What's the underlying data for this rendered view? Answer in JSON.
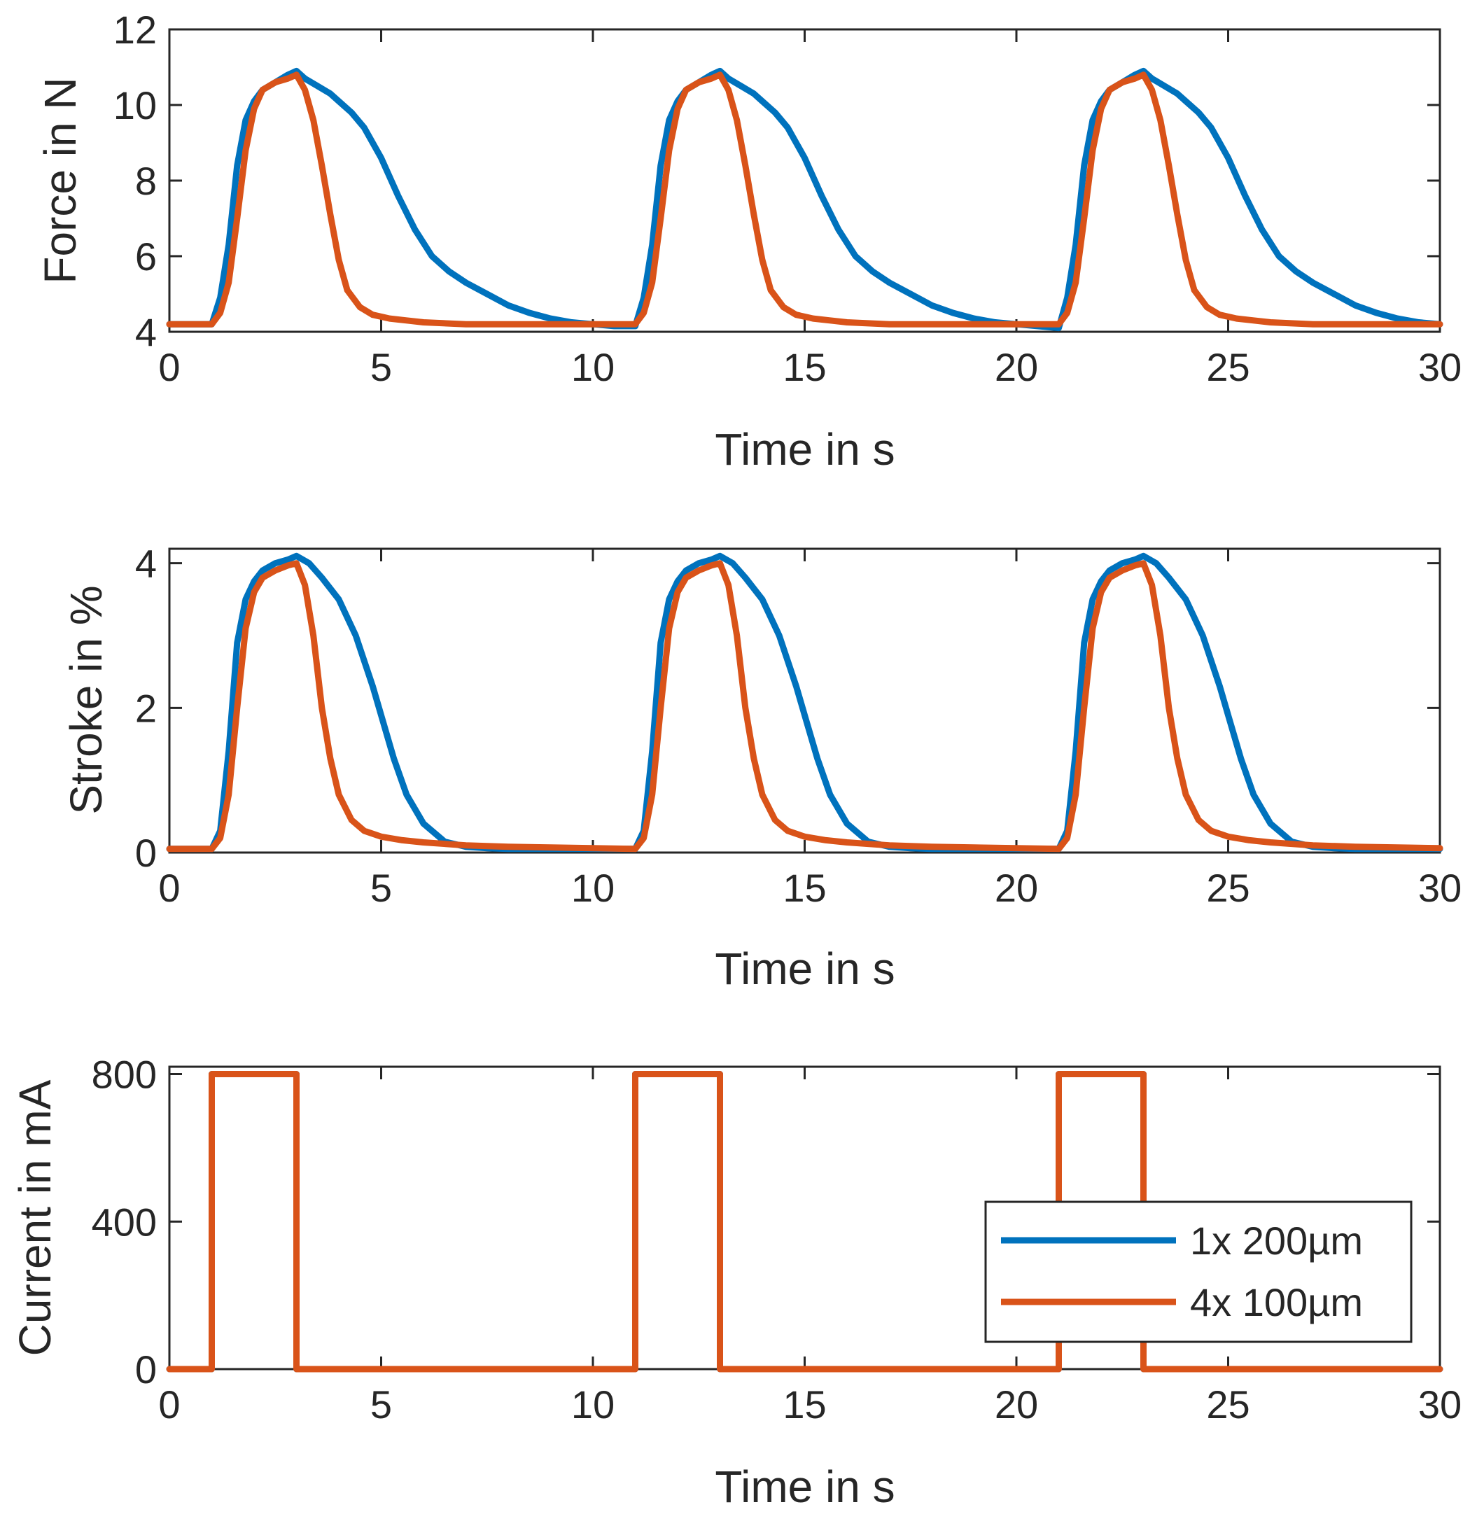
{
  "chart_data": [
    {
      "type": "line",
      "xlabel": "Time in s",
      "ylabel": "Force in N",
      "xlim": [
        0,
        30
      ],
      "ylim": [
        4,
        12
      ],
      "xticks": [
        0,
        5,
        10,
        15,
        20,
        25,
        30
      ],
      "yticks": [
        4,
        6,
        8,
        10,
        12
      ],
      "grid": false,
      "series": [
        {
          "color": "#0072BD",
          "x": [
            0,
            1,
            1.2,
            1.4,
            1.6,
            1.8,
            2.0,
            2.2,
            2.5,
            2.8,
            3.0,
            3.2,
            3.5,
            3.8,
            4.0,
            4.3,
            4.6,
            5.0,
            5.4,
            5.8,
            6.2,
            6.6,
            7.0,
            7.5,
            8.0,
            8.5,
            9.0,
            9.5,
            10.0,
            10.5,
            11.0,
            11.2,
            11.4,
            11.6,
            11.8,
            12.0,
            12.2,
            12.5,
            12.8,
            13.0,
            13.2,
            13.5,
            13.8,
            14.0,
            14.3,
            14.6,
            15.0,
            15.4,
            15.8,
            16.2,
            16.6,
            17.0,
            17.5,
            18.0,
            18.5,
            19.0,
            19.5,
            20.0,
            20.5,
            21.0,
            21.2,
            21.4,
            21.6,
            21.8,
            22.0,
            22.2,
            22.5,
            22.8,
            23.0,
            23.2,
            23.5,
            23.8,
            24.0,
            24.3,
            24.6,
            25.0,
            25.4,
            25.8,
            26.2,
            26.6,
            27.0,
            27.5,
            28.0,
            28.5,
            29.0,
            29.5,
            30.0
          ],
          "y": [
            4.2,
            4.2,
            4.9,
            6.3,
            8.4,
            9.6,
            10.1,
            10.4,
            10.6,
            10.8,
            10.9,
            10.7,
            10.5,
            10.3,
            10.1,
            9.8,
            9.4,
            8.6,
            7.6,
            6.7,
            6.0,
            5.6,
            5.3,
            5.0,
            4.7,
            4.5,
            4.35,
            4.25,
            4.2,
            4.15,
            4.15,
            4.9,
            6.3,
            8.4,
            9.6,
            10.1,
            10.4,
            10.6,
            10.8,
            10.9,
            10.7,
            10.5,
            10.3,
            10.1,
            9.8,
            9.4,
            8.6,
            7.6,
            6.7,
            6.0,
            5.6,
            5.3,
            5.0,
            4.7,
            4.5,
            4.35,
            4.25,
            4.2,
            4.15,
            4.1,
            4.9,
            6.3,
            8.4,
            9.6,
            10.1,
            10.4,
            10.6,
            10.8,
            10.9,
            10.7,
            10.5,
            10.3,
            10.1,
            9.8,
            9.4,
            8.6,
            7.6,
            6.7,
            6.0,
            5.6,
            5.3,
            5.0,
            4.7,
            4.5,
            4.35,
            4.25,
            4.2
          ]
        },
        {
          "color": "#D95319",
          "x": [
            0,
            1,
            1.2,
            1.4,
            1.6,
            1.8,
            2.0,
            2.2,
            2.5,
            2.8,
            3.0,
            3.2,
            3.4,
            3.6,
            3.8,
            4.0,
            4.2,
            4.5,
            4.8,
            5.2,
            5.6,
            6.0,
            7.0,
            8.0,
            9.0,
            10.0,
            11.0,
            11.2,
            11.4,
            11.6,
            11.8,
            12.0,
            12.2,
            12.5,
            12.8,
            13.0,
            13.2,
            13.4,
            13.6,
            13.8,
            14.0,
            14.2,
            14.5,
            14.8,
            15.2,
            15.6,
            16.0,
            17.0,
            18.0,
            19.0,
            20.0,
            21.0,
            21.2,
            21.4,
            21.6,
            21.8,
            22.0,
            22.2,
            22.5,
            22.8,
            23.0,
            23.2,
            23.4,
            23.6,
            23.8,
            24.0,
            24.2,
            24.5,
            24.8,
            25.2,
            25.6,
            26.0,
            27.0,
            28.0,
            29.0,
            30.0
          ],
          "y": [
            4.2,
            4.2,
            4.5,
            5.3,
            7.0,
            8.8,
            9.9,
            10.4,
            10.6,
            10.7,
            10.8,
            10.4,
            9.6,
            8.4,
            7.1,
            5.9,
            5.1,
            4.65,
            4.45,
            4.35,
            4.3,
            4.25,
            4.2,
            4.2,
            4.2,
            4.2,
            4.2,
            4.5,
            5.3,
            7.0,
            8.8,
            9.9,
            10.4,
            10.6,
            10.7,
            10.8,
            10.4,
            9.6,
            8.4,
            7.1,
            5.9,
            5.1,
            4.65,
            4.45,
            4.35,
            4.3,
            4.25,
            4.2,
            4.2,
            4.2,
            4.2,
            4.2,
            4.5,
            5.3,
            7.0,
            8.8,
            9.9,
            10.4,
            10.6,
            10.7,
            10.8,
            10.4,
            9.6,
            8.4,
            7.1,
            5.9,
            5.1,
            4.65,
            4.45,
            4.35,
            4.3,
            4.25,
            4.2,
            4.2,
            4.2,
            4.2
          ]
        }
      ]
    },
    {
      "type": "line",
      "xlabel": "Time in s",
      "ylabel": "Stroke in %",
      "xlim": [
        0,
        30
      ],
      "ylim": [
        0,
        4.2
      ],
      "xticks": [
        0,
        5,
        10,
        15,
        20,
        25,
        30
      ],
      "yticks": [
        0,
        2,
        4
      ],
      "grid": false,
      "series": [
        {
          "color": "#0072BD",
          "x": [
            0,
            1,
            1.2,
            1.4,
            1.6,
            1.8,
            2.0,
            2.2,
            2.5,
            2.8,
            3.0,
            3.3,
            3.6,
            4.0,
            4.4,
            4.8,
            5.0,
            5.3,
            5.6,
            6.0,
            6.5,
            7.0,
            7.5,
            8.0,
            9.0,
            10.0,
            11.0,
            11.2,
            11.4,
            11.6,
            11.8,
            12.0,
            12.2,
            12.5,
            12.8,
            13.0,
            13.3,
            13.6,
            14.0,
            14.4,
            14.8,
            15.0,
            15.3,
            15.6,
            16.0,
            16.5,
            17.0,
            17.5,
            18.0,
            19.0,
            20.0,
            21.0,
            21.2,
            21.4,
            21.6,
            21.8,
            22.0,
            22.2,
            22.5,
            22.8,
            23.0,
            23.3,
            23.6,
            24.0,
            24.4,
            24.8,
            25.0,
            25.3,
            25.6,
            26.0,
            26.5,
            27.0,
            27.5,
            28.0,
            29.0,
            30.0
          ],
          "y": [
            0.05,
            0.05,
            0.3,
            1.4,
            2.9,
            3.5,
            3.75,
            3.9,
            4.0,
            4.05,
            4.1,
            4.0,
            3.8,
            3.5,
            3.0,
            2.3,
            1.9,
            1.3,
            0.8,
            0.4,
            0.15,
            0.08,
            0.06,
            0.05,
            0.05,
            0.05,
            0.05,
            0.3,
            1.4,
            2.9,
            3.5,
            3.75,
            3.9,
            4.0,
            4.05,
            4.1,
            4.0,
            3.8,
            3.5,
            3.0,
            2.3,
            1.9,
            1.3,
            0.8,
            0.4,
            0.15,
            0.08,
            0.06,
            0.05,
            0.05,
            0.05,
            0.05,
            0.3,
            1.4,
            2.9,
            3.5,
            3.75,
            3.9,
            4.0,
            4.05,
            4.1,
            4.0,
            3.8,
            3.5,
            3.0,
            2.3,
            1.9,
            1.3,
            0.8,
            0.4,
            0.15,
            0.08,
            0.06,
            0.05,
            0.05,
            0.05
          ]
        },
        {
          "color": "#D95319",
          "x": [
            0,
            1,
            1.2,
            1.4,
            1.6,
            1.8,
            2.0,
            2.2,
            2.5,
            2.8,
            3.0,
            3.2,
            3.4,
            3.6,
            3.8,
            4.0,
            4.3,
            4.6,
            5.0,
            5.5,
            6.0,
            7.0,
            8.0,
            9.0,
            10.0,
            11.0,
            11.2,
            11.4,
            11.6,
            11.8,
            12.0,
            12.2,
            12.5,
            12.8,
            13.0,
            13.2,
            13.4,
            13.6,
            13.8,
            14.0,
            14.3,
            14.6,
            15.0,
            15.5,
            16.0,
            17.0,
            18.0,
            19.0,
            20.0,
            21.0,
            21.2,
            21.4,
            21.6,
            21.8,
            22.0,
            22.2,
            22.5,
            22.8,
            23.0,
            23.2,
            23.4,
            23.6,
            23.8,
            24.0,
            24.3,
            24.6,
            25.0,
            25.5,
            26.0,
            27.0,
            28.0,
            29.0,
            30.0
          ],
          "y": [
            0.05,
            0.05,
            0.2,
            0.8,
            2.0,
            3.1,
            3.6,
            3.8,
            3.9,
            3.97,
            4.0,
            3.7,
            3.0,
            2.0,
            1.3,
            0.8,
            0.45,
            0.3,
            0.22,
            0.17,
            0.14,
            0.1,
            0.08,
            0.07,
            0.06,
            0.05,
            0.2,
            0.8,
            2.0,
            3.1,
            3.6,
            3.8,
            3.9,
            3.97,
            4.0,
            3.7,
            3.0,
            2.0,
            1.3,
            0.8,
            0.45,
            0.3,
            0.22,
            0.17,
            0.14,
            0.1,
            0.08,
            0.07,
            0.06,
            0.05,
            0.2,
            0.8,
            2.0,
            3.1,
            3.6,
            3.8,
            3.9,
            3.97,
            4.0,
            3.7,
            3.0,
            2.0,
            1.3,
            0.8,
            0.45,
            0.3,
            0.22,
            0.17,
            0.14,
            0.1,
            0.08,
            0.07,
            0.06
          ]
        }
      ]
    },
    {
      "type": "line",
      "xlabel": "Time in s",
      "ylabel": "Current in mA",
      "xlim": [
        0,
        30
      ],
      "ylim": [
        0,
        820
      ],
      "xticks": [
        0,
        5,
        10,
        15,
        20,
        25,
        30
      ],
      "yticks": [
        0,
        400,
        800
      ],
      "grid": false,
      "legend_position": "bottom-right",
      "series": [
        {
          "name": "1x 200µm",
          "color": "#0072BD",
          "x": [
            0,
            1,
            1,
            3,
            3,
            11,
            11,
            13,
            13,
            21,
            21,
            23,
            23,
            30
          ],
          "y": [
            0,
            0,
            800,
            800,
            0,
            0,
            800,
            800,
            0,
            0,
            800,
            800,
            0,
            0
          ]
        },
        {
          "name": "4x 100µm",
          "color": "#D95319",
          "x": [
            0,
            1,
            1,
            3,
            3,
            11,
            11,
            13,
            13,
            21,
            21,
            23,
            23,
            30
          ],
          "y": [
            0,
            0,
            800,
            800,
            0,
            0,
            800,
            800,
            0,
            0,
            800,
            800,
            0,
            0
          ]
        }
      ]
    }
  ]
}
